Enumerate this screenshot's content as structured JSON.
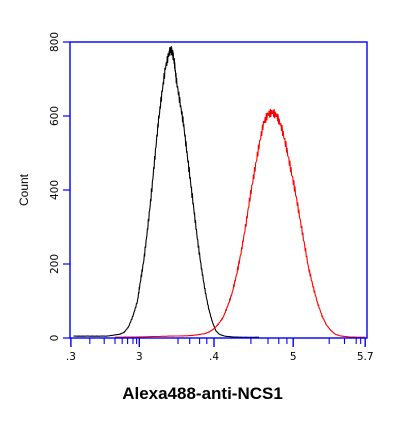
{
  "chart_data": {
    "type": "line",
    "title": "",
    "xlabel": "Alexa488-anti-NCS1",
    "ylabel": "Count",
    "xlim": [
      2.4,
      5.7
    ],
    "ylim": [
      0,
      800
    ],
    "x_tick_labels": [
      ".3",
      "3",
      ".4",
      "5",
      "5.7"
    ],
    "y_ticks": [
      0,
      200,
      400,
      600,
      800
    ],
    "y_tick_labels": [
      "0",
      "200",
      "400",
      "600",
      "800"
    ],
    "grid": false,
    "frame_color": "#0000ff",
    "series": [
      {
        "color": "#000000",
        "x": [
          2.44,
          2.6,
          2.8,
          2.95,
          3.0,
          3.05,
          3.1,
          3.15,
          3.18,
          3.22,
          3.26,
          3.3,
          3.34,
          3.38,
          3.42,
          3.46,
          3.5,
          3.52,
          3.54,
          3.56,
          3.58,
          3.62,
          3.66,
          3.7,
          3.74,
          3.78,
          3.82,
          3.86,
          3.9,
          3.94,
          3.98,
          4.02,
          4.06,
          4.12,
          4.2,
          4.3,
          4.5
        ],
        "y": [
          5,
          5,
          5,
          10,
          15,
          30,
          60,
          100,
          150,
          210,
          290,
          380,
          480,
          580,
          660,
          730,
          770,
          780,
          770,
          745,
          700,
          640,
          580,
          500,
          420,
          340,
          260,
          190,
          130,
          80,
          45,
          20,
          10,
          5,
          3,
          2,
          2
        ]
      },
      {
        "color": "#ff0000",
        "x": [
          2.9,
          3.2,
          3.5,
          3.7,
          3.8,
          3.9,
          3.95,
          4.0,
          4.05,
          4.1,
          4.15,
          4.2,
          4.25,
          4.3,
          4.35,
          4.4,
          4.45,
          4.5,
          4.55,
          4.6,
          4.65,
          4.7,
          4.75,
          4.8,
          4.85,
          4.9,
          4.95,
          5.0,
          5.05,
          5.1,
          5.15,
          5.2,
          5.25,
          5.3,
          5.35,
          5.4,
          5.45,
          5.5,
          5.6,
          5.68
        ],
        "y": [
          2,
          3,
          5,
          6,
          8,
          12,
          17,
          25,
          38,
          55,
          85,
          120,
          170,
          230,
          300,
          380,
          450,
          520,
          580,
          605,
          610,
          600,
          570,
          520,
          460,
          400,
          330,
          260,
          190,
          140,
          95,
          60,
          35,
          20,
          10,
          6,
          4,
          3,
          2,
          2
        ]
      }
    ]
  }
}
